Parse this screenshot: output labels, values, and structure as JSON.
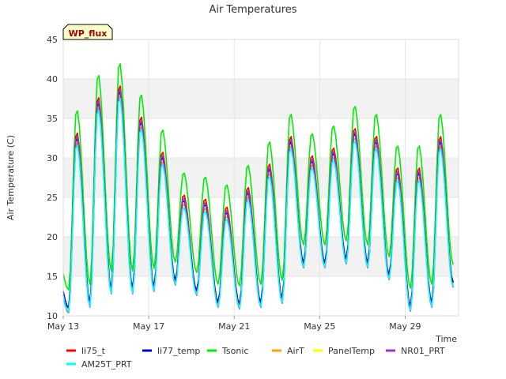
{
  "chart_data": {
    "type": "line",
    "title": "Air Temperatures",
    "xlabel": "Time",
    "ylabel": "Air Temperature (C)",
    "badge": "WP_flux",
    "ylim": [
      10,
      45
    ],
    "xlim": [
      "2023-05-13",
      "2023-05-31T12:00"
    ],
    "yticks": [
      10,
      15,
      20,
      25,
      30,
      35,
      40,
      45
    ],
    "xticks": [
      "May 13",
      "May 17",
      "May 21",
      "May 25",
      "May 29"
    ],
    "xtick_dates": [
      "2023-05-13",
      "2023-05-17",
      "2023-05-21",
      "2023-05-25",
      "2023-05-29"
    ],
    "grid": true,
    "legend_position": "bottom",
    "daily": [
      {
        "date": "2023-05-13",
        "min": 10.8,
        "max": 33.0
      },
      {
        "date": "2023-05-14",
        "min": 11.5,
        "max": 37.5
      },
      {
        "date": "2023-05-15",
        "min": 13.2,
        "max": 39.0
      },
      {
        "date": "2023-05-16",
        "min": 13.2,
        "max": 35.0
      },
      {
        "date": "2023-05-17",
        "min": 13.5,
        "max": 30.5
      },
      {
        "date": "2023-05-18",
        "min": 14.3,
        "max": 25.0
      },
      {
        "date": "2023-05-19",
        "min": 13.0,
        "max": 24.5
      },
      {
        "date": "2023-05-20",
        "min": 11.5,
        "max": 23.5
      },
      {
        "date": "2023-05-21",
        "min": 11.3,
        "max": 26.0
      },
      {
        "date": "2023-05-22",
        "min": 11.5,
        "max": 29.0
      },
      {
        "date": "2023-05-23",
        "min": 12.0,
        "max": 32.5
      },
      {
        "date": "2023-05-24",
        "min": 16.5,
        "max": 30.0
      },
      {
        "date": "2023-05-25",
        "min": 16.5,
        "max": 31.0
      },
      {
        "date": "2023-05-26",
        "min": 17.0,
        "max": 33.5
      },
      {
        "date": "2023-05-27",
        "min": 16.5,
        "max": 32.5
      },
      {
        "date": "2023-05-28",
        "min": 15.0,
        "max": 28.5
      },
      {
        "date": "2023-05-29",
        "min": 11.0,
        "max": 28.5
      },
      {
        "date": "2023-05-30",
        "min": 11.5,
        "max": 32.5
      },
      {
        "date": "2023-05-31",
        "min": 14.0,
        "max": 16.0
      }
    ],
    "series": [
      {
        "name": "li75_t",
        "color": "#ff0000"
      },
      {
        "name": "li77_temp",
        "color": "#0000cc"
      },
      {
        "name": "Tsonic",
        "color": "#00ee00"
      },
      {
        "name": "AirT",
        "color": "#ffa500"
      },
      {
        "name": "PanelTemp",
        "color": "#ffff00"
      },
      {
        "name": "NR01_PRT",
        "color": "#9933cc"
      },
      {
        "name": "AM25T_PRT",
        "color": "#00ffff"
      }
    ]
  }
}
